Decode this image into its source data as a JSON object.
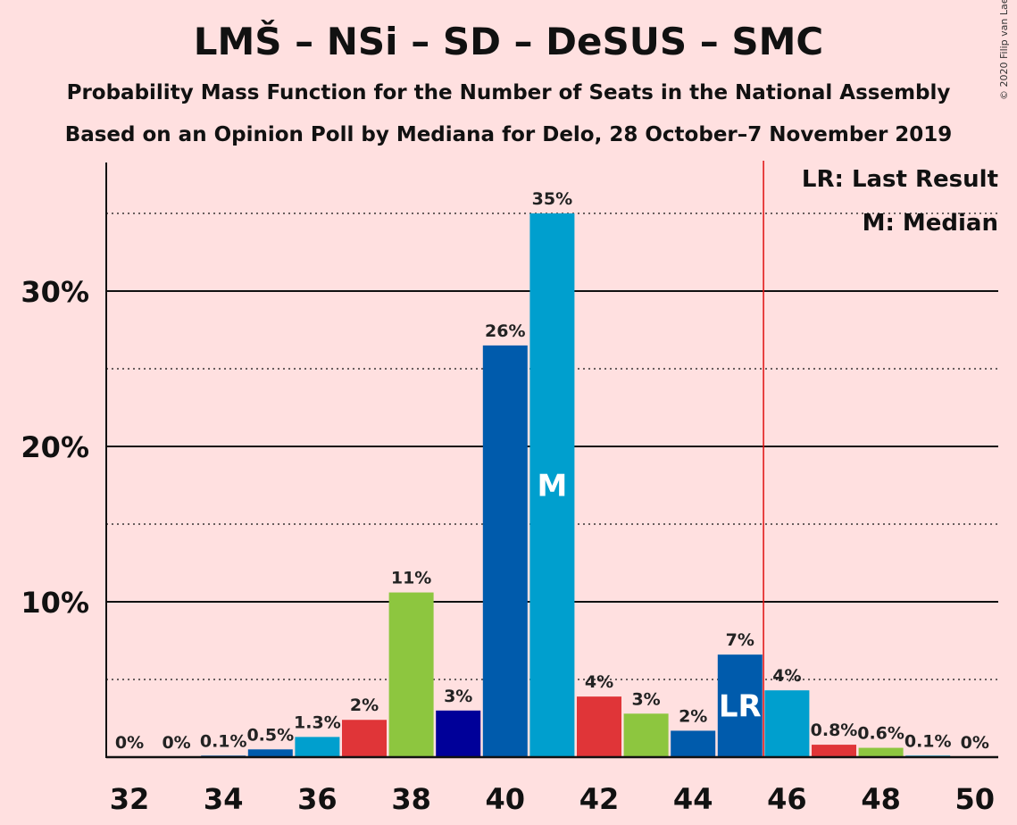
{
  "title": "LMŠ – NSi – SD – DeSUS – SMC",
  "subtitle1": "Probability Mass Function for the Number of Seats in the National Assembly",
  "subtitle2": "Based on an Opinion Poll by Mediana for Delo, 28 October–7 November 2019",
  "copyright": "© 2020 Filip van Laenen",
  "legend": {
    "last_result": "LR: Last Result",
    "median": "M: Median"
  },
  "colors": {
    "background": "#FFE0E0",
    "majority_line": "#E01010",
    "party_colors": [
      "#005BAC",
      "#009FCE",
      "#E03538",
      "#8DC63F",
      "#000099"
    ]
  },
  "chart_data": {
    "type": "bar",
    "title": "LMŠ – NSi – SD – DeSUS – SMC",
    "xlabel": "",
    "ylabel": "",
    "ylim": [
      0,
      38
    ],
    "xlim": [
      31.5,
      50.5
    ],
    "x_ticks": [
      32,
      34,
      36,
      38,
      40,
      42,
      44,
      46,
      48,
      50
    ],
    "y_ticks": [
      {
        "value": 10,
        "label": "10%"
      },
      {
        "value": 20,
        "label": "20%"
      },
      {
        "value": 30,
        "label": "30%"
      }
    ],
    "y_minor": [
      5,
      15,
      25,
      35
    ],
    "majority_line_x": 45.5,
    "median_seat": 41,
    "last_result_seat": 45,
    "median_marker": "M",
    "last_result_marker": "LR",
    "bars": [
      {
        "seats": 32,
        "value": 0,
        "label": "0%",
        "color": "#005BAC"
      },
      {
        "seats": 33,
        "value": 0,
        "label": "0%",
        "color": "#009FCE"
      },
      {
        "seats": 34,
        "value": 0.1,
        "label": "0.1%",
        "color": "#005BAC"
      },
      {
        "seats": 35,
        "value": 0.5,
        "label": "0.5%",
        "color": "#005BAC"
      },
      {
        "seats": 36,
        "value": 1.3,
        "label": "1.3%",
        "color": "#009FCE"
      },
      {
        "seats": 37,
        "value": 2.4,
        "label": "2%",
        "color": "#E03538"
      },
      {
        "seats": 38,
        "value": 10.6,
        "label": "11%",
        "color": "#8DC63F"
      },
      {
        "seats": 39,
        "value": 3.0,
        "label": "3%",
        "color": "#000099"
      },
      {
        "seats": 40,
        "value": 26.5,
        "label": "26%",
        "color": "#005BAC"
      },
      {
        "seats": 41,
        "value": 35.0,
        "label": "35%",
        "color": "#009FCE"
      },
      {
        "seats": 42,
        "value": 3.9,
        "label": "4%",
        "color": "#E03538"
      },
      {
        "seats": 43,
        "value": 2.8,
        "label": "3%",
        "color": "#8DC63F"
      },
      {
        "seats": 44,
        "value": 1.7,
        "label": "2%",
        "color": "#005BAC"
      },
      {
        "seats": 45,
        "value": 6.6,
        "label": "7%",
        "color": "#005BAC"
      },
      {
        "seats": 46,
        "value": 4.3,
        "label": "4%",
        "color": "#009FCE"
      },
      {
        "seats": 47,
        "value": 0.8,
        "label": "0.8%",
        "color": "#E03538"
      },
      {
        "seats": 48,
        "value": 0.6,
        "label": "0.6%",
        "color": "#8DC63F"
      },
      {
        "seats": 49,
        "value": 0.1,
        "label": "0.1%",
        "color": "#009FCE"
      },
      {
        "seats": 50,
        "value": 0,
        "label": "0%",
        "color": "#005BAC"
      }
    ]
  }
}
